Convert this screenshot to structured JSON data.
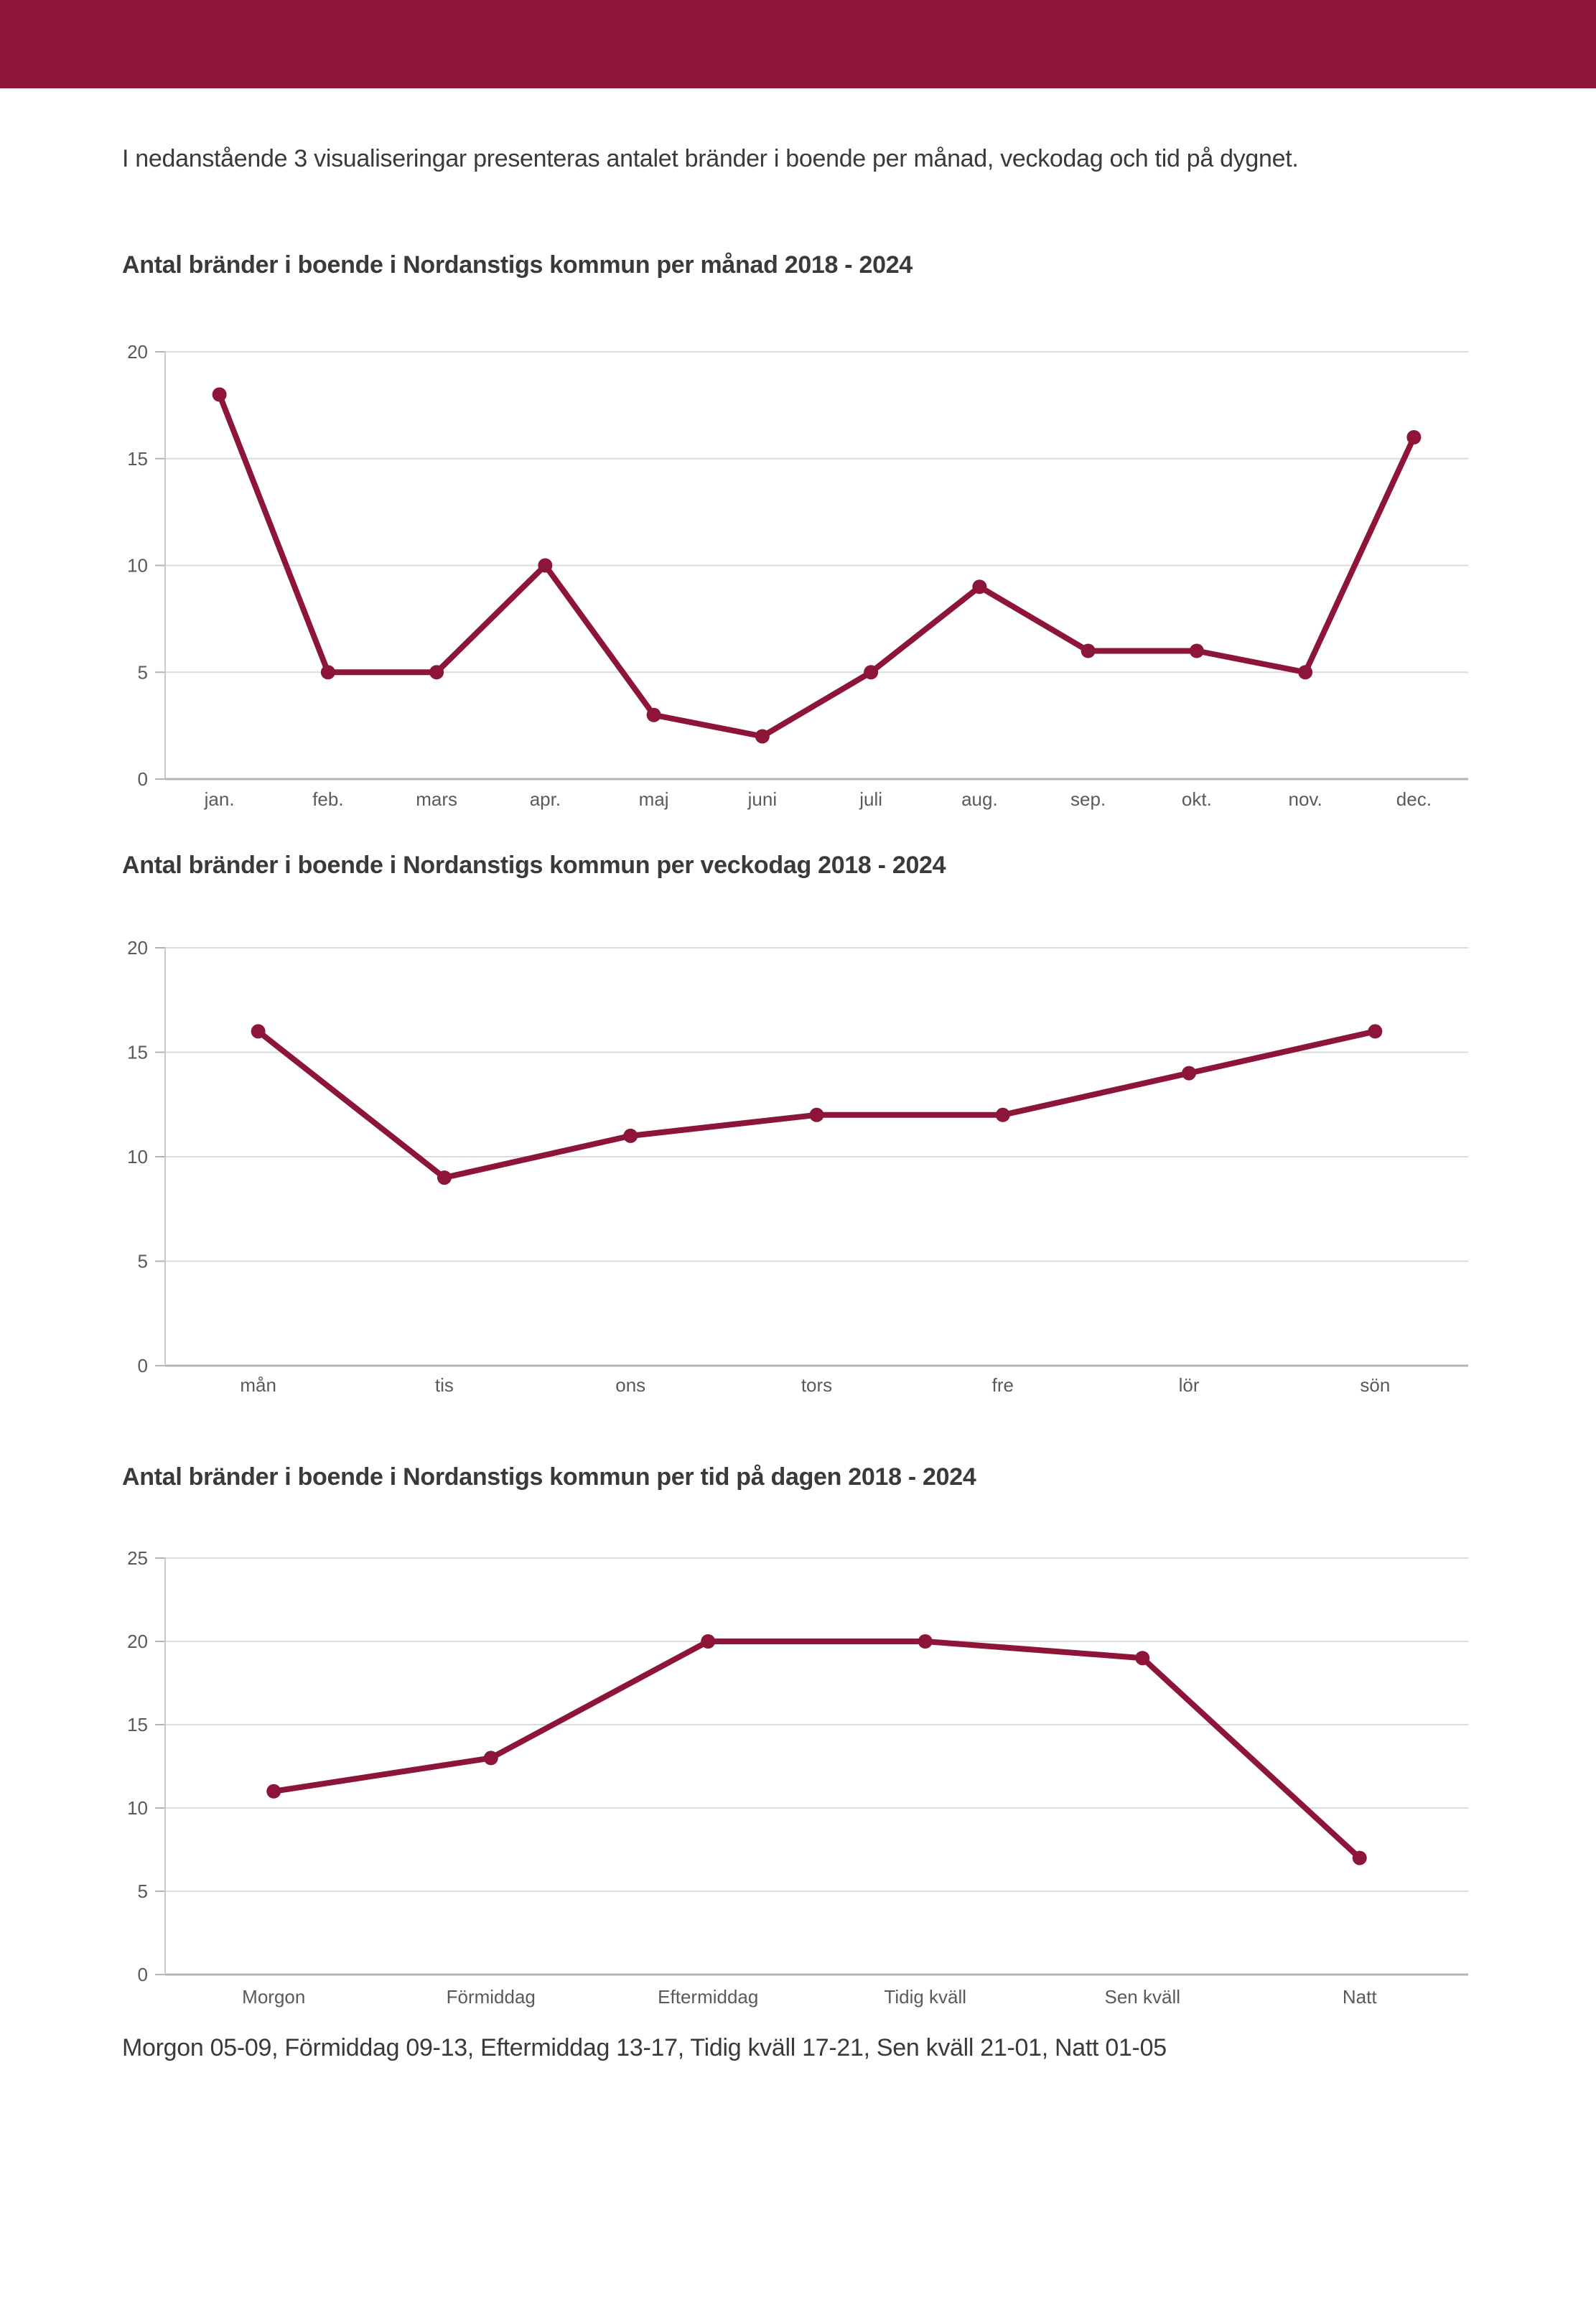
{
  "header": {
    "bar_color": "#8D1538"
  },
  "intro": "I nedanstående 3 visualiseringar presenteras antalet bränder i boende per månad, veckodag och tid på dygnet.",
  "footer": "Morgon 05-09, Förmiddag 09-13, Eftermiddag 13-17, Tidig kväll 17-21, Sen kväll 21-01, Natt 01-05",
  "styles": {
    "line_color": "#8D1538",
    "marker_color": "#8D1538",
    "grid_color": "#DCDCDC",
    "axis_color": "#B3B3B3",
    "left_axis_color": "#C9C9C9",
    "tick_label_color": "#5A5A5A",
    "text_color": "#3A3A3A"
  },
  "chart_data": [
    {
      "type": "line",
      "title": "Antal bränder i boende i Nordanstigs kommun per månad 2018 - 2024",
      "categories": [
        "jan.",
        "feb.",
        "mars",
        "apr.",
        "maj",
        "juni",
        "juli",
        "aug.",
        "sep.",
        "okt.",
        "nov.",
        "dec."
      ],
      "values": [
        18,
        5,
        5,
        10,
        3,
        2,
        5,
        9,
        6,
        6,
        5,
        16
      ],
      "xlabel": "",
      "ylabel": "",
      "ylim": [
        0,
        20
      ],
      "yticks": [
        0,
        5,
        10,
        15,
        20
      ],
      "grid": true,
      "legend": null
    },
    {
      "type": "line",
      "title": "Antal bränder i boende i Nordanstigs kommun per veckodag 2018 - 2024",
      "categories": [
        "mån",
        "tis",
        "ons",
        "tors",
        "fre",
        "lör",
        "sön"
      ],
      "values": [
        16,
        9,
        11,
        12,
        12,
        14,
        16
      ],
      "xlabel": "",
      "ylabel": "",
      "ylim": [
        0,
        20
      ],
      "yticks": [
        0,
        5,
        10,
        15,
        20
      ],
      "grid": true,
      "legend": null
    },
    {
      "type": "line",
      "title": "Antal bränder i boende i Nordanstigs kommun per tid på dagen 2018 - 2024",
      "categories": [
        "Morgon",
        "Förmiddag",
        "Eftermiddag",
        "Tidig kväll",
        "Sen kväll",
        "Natt"
      ],
      "values": [
        11,
        13,
        20,
        20,
        19,
        7
      ],
      "xlabel": "",
      "ylabel": "",
      "ylim": [
        0,
        25
      ],
      "yticks": [
        0,
        5,
        10,
        15,
        20,
        25
      ],
      "grid": true,
      "legend": null
    }
  ]
}
